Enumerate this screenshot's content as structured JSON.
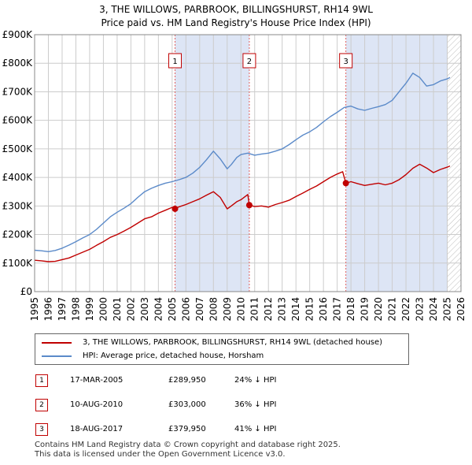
{
  "title_line1": "3, THE WILLOWS, PARBROOK, BILLINGSHURST, RH14 9WL",
  "title_line2": "Price paid vs. HM Land Registry's House Price Index (HPI)",
  "colors": {
    "property_line": "#c00000",
    "hpi_line": "#5b8ac9",
    "shade": "#dde5f5",
    "grid": "#cccccc",
    "sale_marker_line": "#e06060",
    "projection_hatch": "#bbbbbb"
  },
  "legend": {
    "property_label": "3, THE WILLOWS, PARBROOK, BILLINGSHURST, RH14 9WL (detached house)",
    "hpi_label": "HPI: Average price, detached house, Horsham"
  },
  "sales": [
    {
      "num": "1",
      "date": "17-MAR-2005",
      "price": "£289,950",
      "hpi": "24% ↓ HPI"
    },
    {
      "num": "2",
      "date": "10-AUG-2010",
      "price": "£303,000",
      "hpi": "36% ↓ HPI"
    },
    {
      "num": "3",
      "date": "18-AUG-2017",
      "price": "£379,950",
      "hpi": "41% ↓ HPI"
    }
  ],
  "footer_line1": "Contains HM Land Registry data © Crown copyright and database right 2025.",
  "footer_line2": "This data is licensed under the Open Government Licence v3.0.",
  "chart_data": {
    "type": "line",
    "title": "3, THE WILLOWS, PARBROOK, BILLINGSHURST, RH14 9WL",
    "subtitle": "Price paid vs. HM Land Registry's House Price Index (HPI)",
    "xlabel": "",
    "ylabel": "",
    "xlim": [
      1995,
      2026
    ],
    "ylim": [
      0,
      900000
    ],
    "x_ticks": [
      1995,
      1996,
      1997,
      1998,
      1999,
      2000,
      2001,
      2002,
      2003,
      2004,
      2005,
      2006,
      2007,
      2008,
      2009,
      2010,
      2011,
      2012,
      2013,
      2014,
      2015,
      2016,
      2017,
      2018,
      2019,
      2020,
      2021,
      2022,
      2023,
      2024,
      2025,
      2026
    ],
    "y_ticks": [
      {
        "value": 0,
        "label": "£0"
      },
      {
        "value": 100000,
        "label": "£100K"
      },
      {
        "value": 200000,
        "label": "£200K"
      },
      {
        "value": 300000,
        "label": "£300K"
      },
      {
        "value": 400000,
        "label": "£400K"
      },
      {
        "value": 500000,
        "label": "£500K"
      },
      {
        "value": 600000,
        "label": "£600K"
      },
      {
        "value": 700000,
        "label": "£700K"
      },
      {
        "value": 800000,
        "label": "£800K"
      },
      {
        "value": 900000,
        "label": "£900K"
      }
    ],
    "grid": true,
    "legend_position": "below",
    "shaded_periods": [
      [
        2005.21,
        2010.61
      ],
      [
        2017.63,
        2025.0
      ]
    ],
    "projection_start": 2025.0,
    "sale_markers": [
      {
        "label": "1",
        "x": 2005.21,
        "y": 289950
      },
      {
        "label": "2",
        "x": 2010.61,
        "y": 303000
      },
      {
        "label": "3",
        "x": 2017.63,
        "y": 379950
      }
    ],
    "series": [
      {
        "name": "3, THE WILLOWS, PARBROOK, BILLINGSHURST, RH14 9WL (detached house)",
        "color": "#c00000",
        "x": [
          1995.0,
          1995.5,
          1996.0,
          1996.5,
          1997.0,
          1997.5,
          1998.0,
          1998.5,
          1999.0,
          1999.5,
          2000.0,
          2000.5,
          2001.0,
          2001.5,
          2002.0,
          2002.5,
          2003.0,
          2003.5,
          2004.0,
          2004.5,
          2005.0,
          2005.21,
          2005.5,
          2006.0,
          2006.5,
          2007.0,
          2007.5,
          2008.0,
          2008.5,
          2009.0,
          2009.3,
          2009.7,
          2010.0,
          2010.5,
          2010.61,
          2011.0,
          2011.5,
          2012.0,
          2012.5,
          2013.0,
          2013.5,
          2014.0,
          2014.5,
          2015.0,
          2015.5,
          2016.0,
          2016.5,
          2017.0,
          2017.4,
          2017.63,
          2018.0,
          2018.5,
          2019.0,
          2019.5,
          2020.0,
          2020.5,
          2021.0,
          2021.5,
          2022.0,
          2022.5,
          2023.0,
          2023.5,
          2024.0,
          2024.5,
          2025.0,
          2025.2
        ],
        "y": [
          110000,
          108000,
          105000,
          106000,
          112000,
          118000,
          128000,
          138000,
          148000,
          162000,
          175000,
          190000,
          200000,
          212000,
          225000,
          240000,
          255000,
          262000,
          275000,
          285000,
          295000,
          289950,
          297000,
          305000,
          315000,
          325000,
          338000,
          350000,
          330000,
          290000,
          300000,
          315000,
          322000,
          340000,
          303000,
          298000,
          300000,
          296000,
          305000,
          312000,
          320000,
          333000,
          345000,
          358000,
          370000,
          385000,
          400000,
          412000,
          420000,
          379950,
          385000,
          378000,
          372000,
          376000,
          380000,
          374000,
          380000,
          392000,
          410000,
          432000,
          446000,
          433000,
          417000,
          428000,
          436000,
          440000
        ]
      },
      {
        "name": "HPI: Average price, detached house, Horsham",
        "color": "#5b8ac9",
        "x": [
          1995.0,
          1995.5,
          1996.0,
          1996.5,
          1997.0,
          1997.5,
          1998.0,
          1998.5,
          1999.0,
          1999.5,
          2000.0,
          2000.5,
          2001.0,
          2001.5,
          2002.0,
          2002.5,
          2003.0,
          2003.5,
          2004.0,
          2004.5,
          2005.0,
          2005.5,
          2006.0,
          2006.5,
          2007.0,
          2007.5,
          2008.0,
          2008.5,
          2009.0,
          2009.3,
          2009.7,
          2010.0,
          2010.5,
          2011.0,
          2011.5,
          2012.0,
          2012.5,
          2013.0,
          2013.5,
          2014.0,
          2014.5,
          2015.0,
          2015.5,
          2016.0,
          2016.5,
          2017.0,
          2017.5,
          2018.0,
          2018.5,
          2019.0,
          2019.5,
          2020.0,
          2020.5,
          2021.0,
          2021.5,
          2022.0,
          2022.5,
          2023.0,
          2023.5,
          2024.0,
          2024.5,
          2025.0,
          2025.2
        ],
        "y": [
          145000,
          143000,
          140000,
          144000,
          152000,
          163000,
          175000,
          188000,
          200000,
          218000,
          240000,
          262000,
          278000,
          292000,
          308000,
          330000,
          350000,
          362000,
          372000,
          380000,
          385000,
          392000,
          400000,
          415000,
          435000,
          462000,
          492000,
          465000,
          430000,
          445000,
          470000,
          480000,
          485000,
          478000,
          482000,
          485000,
          492000,
          500000,
          515000,
          532000,
          548000,
          560000,
          575000,
          595000,
          613000,
          628000,
          645000,
          650000,
          640000,
          635000,
          642000,
          648000,
          655000,
          670000,
          700000,
          730000,
          765000,
          750000,
          720000,
          725000,
          738000,
          745000,
          750000
        ]
      }
    ]
  }
}
